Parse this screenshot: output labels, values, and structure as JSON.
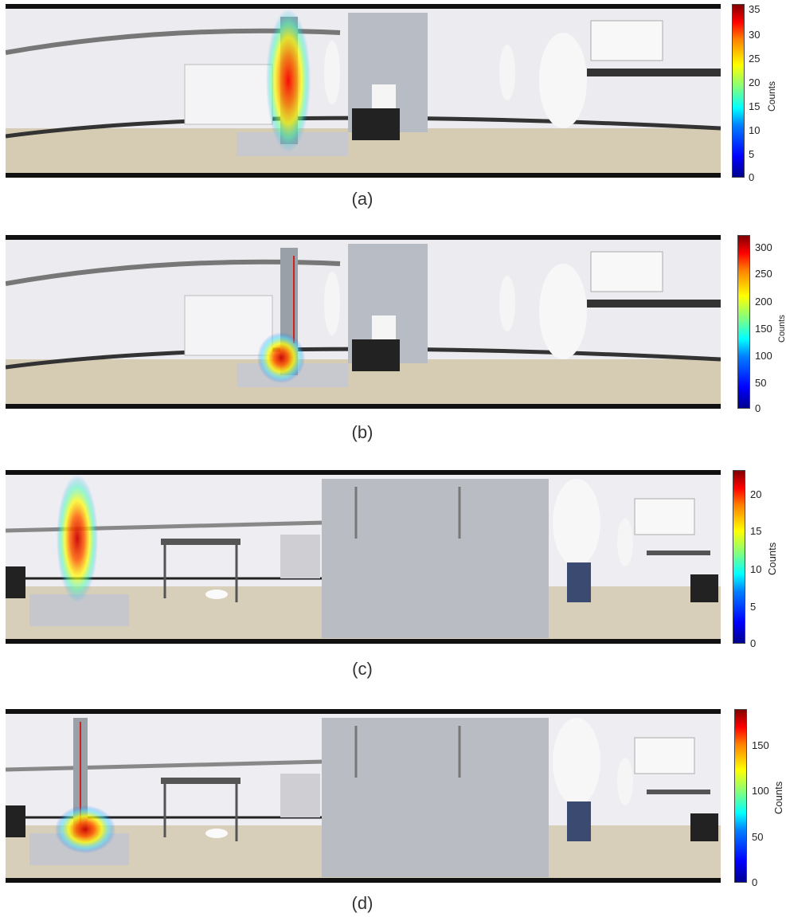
{
  "figure": {
    "panels": [
      {
        "caption": "(a)",
        "colorbar": {
          "label": "Counts",
          "ticks": [
            "0",
            "5",
            "10",
            "15",
            "20",
            "25",
            "30",
            "35"
          ],
          "max": 37
        },
        "scene": "lab-view-1",
        "hotspot": {
          "shape": "vertical-column",
          "position": "left-center"
        }
      },
      {
        "caption": "(b)",
        "colorbar": {
          "label": "Counts",
          "ticks": [
            "0",
            "50",
            "100",
            "150",
            "200",
            "250",
            "300"
          ],
          "max": 320
        },
        "scene": "lab-view-1",
        "hotspot": {
          "shape": "compact-spot",
          "position": "left-center-bottom"
        }
      },
      {
        "caption": "(c)",
        "colorbar": {
          "label": "Counts",
          "ticks": [
            "0",
            "5",
            "10",
            "15",
            "20"
          ],
          "max": 23
        },
        "scene": "lab-view-2",
        "hotspot": {
          "shape": "vertical-column",
          "position": "far-left"
        }
      },
      {
        "caption": "(d)",
        "colorbar": {
          "label": "Counts",
          "ticks": [
            "0",
            "50",
            "100",
            "150"
          ],
          "max": 185
        },
        "scene": "lab-view-2",
        "hotspot": {
          "shape": "compact-spot",
          "position": "far-left-bottom"
        }
      }
    ],
    "colors": {
      "cmap_low": "#00008f",
      "cmap_high": "#800000",
      "wall": "#e9e9ee",
      "floor": "#d8cdb4"
    }
  }
}
